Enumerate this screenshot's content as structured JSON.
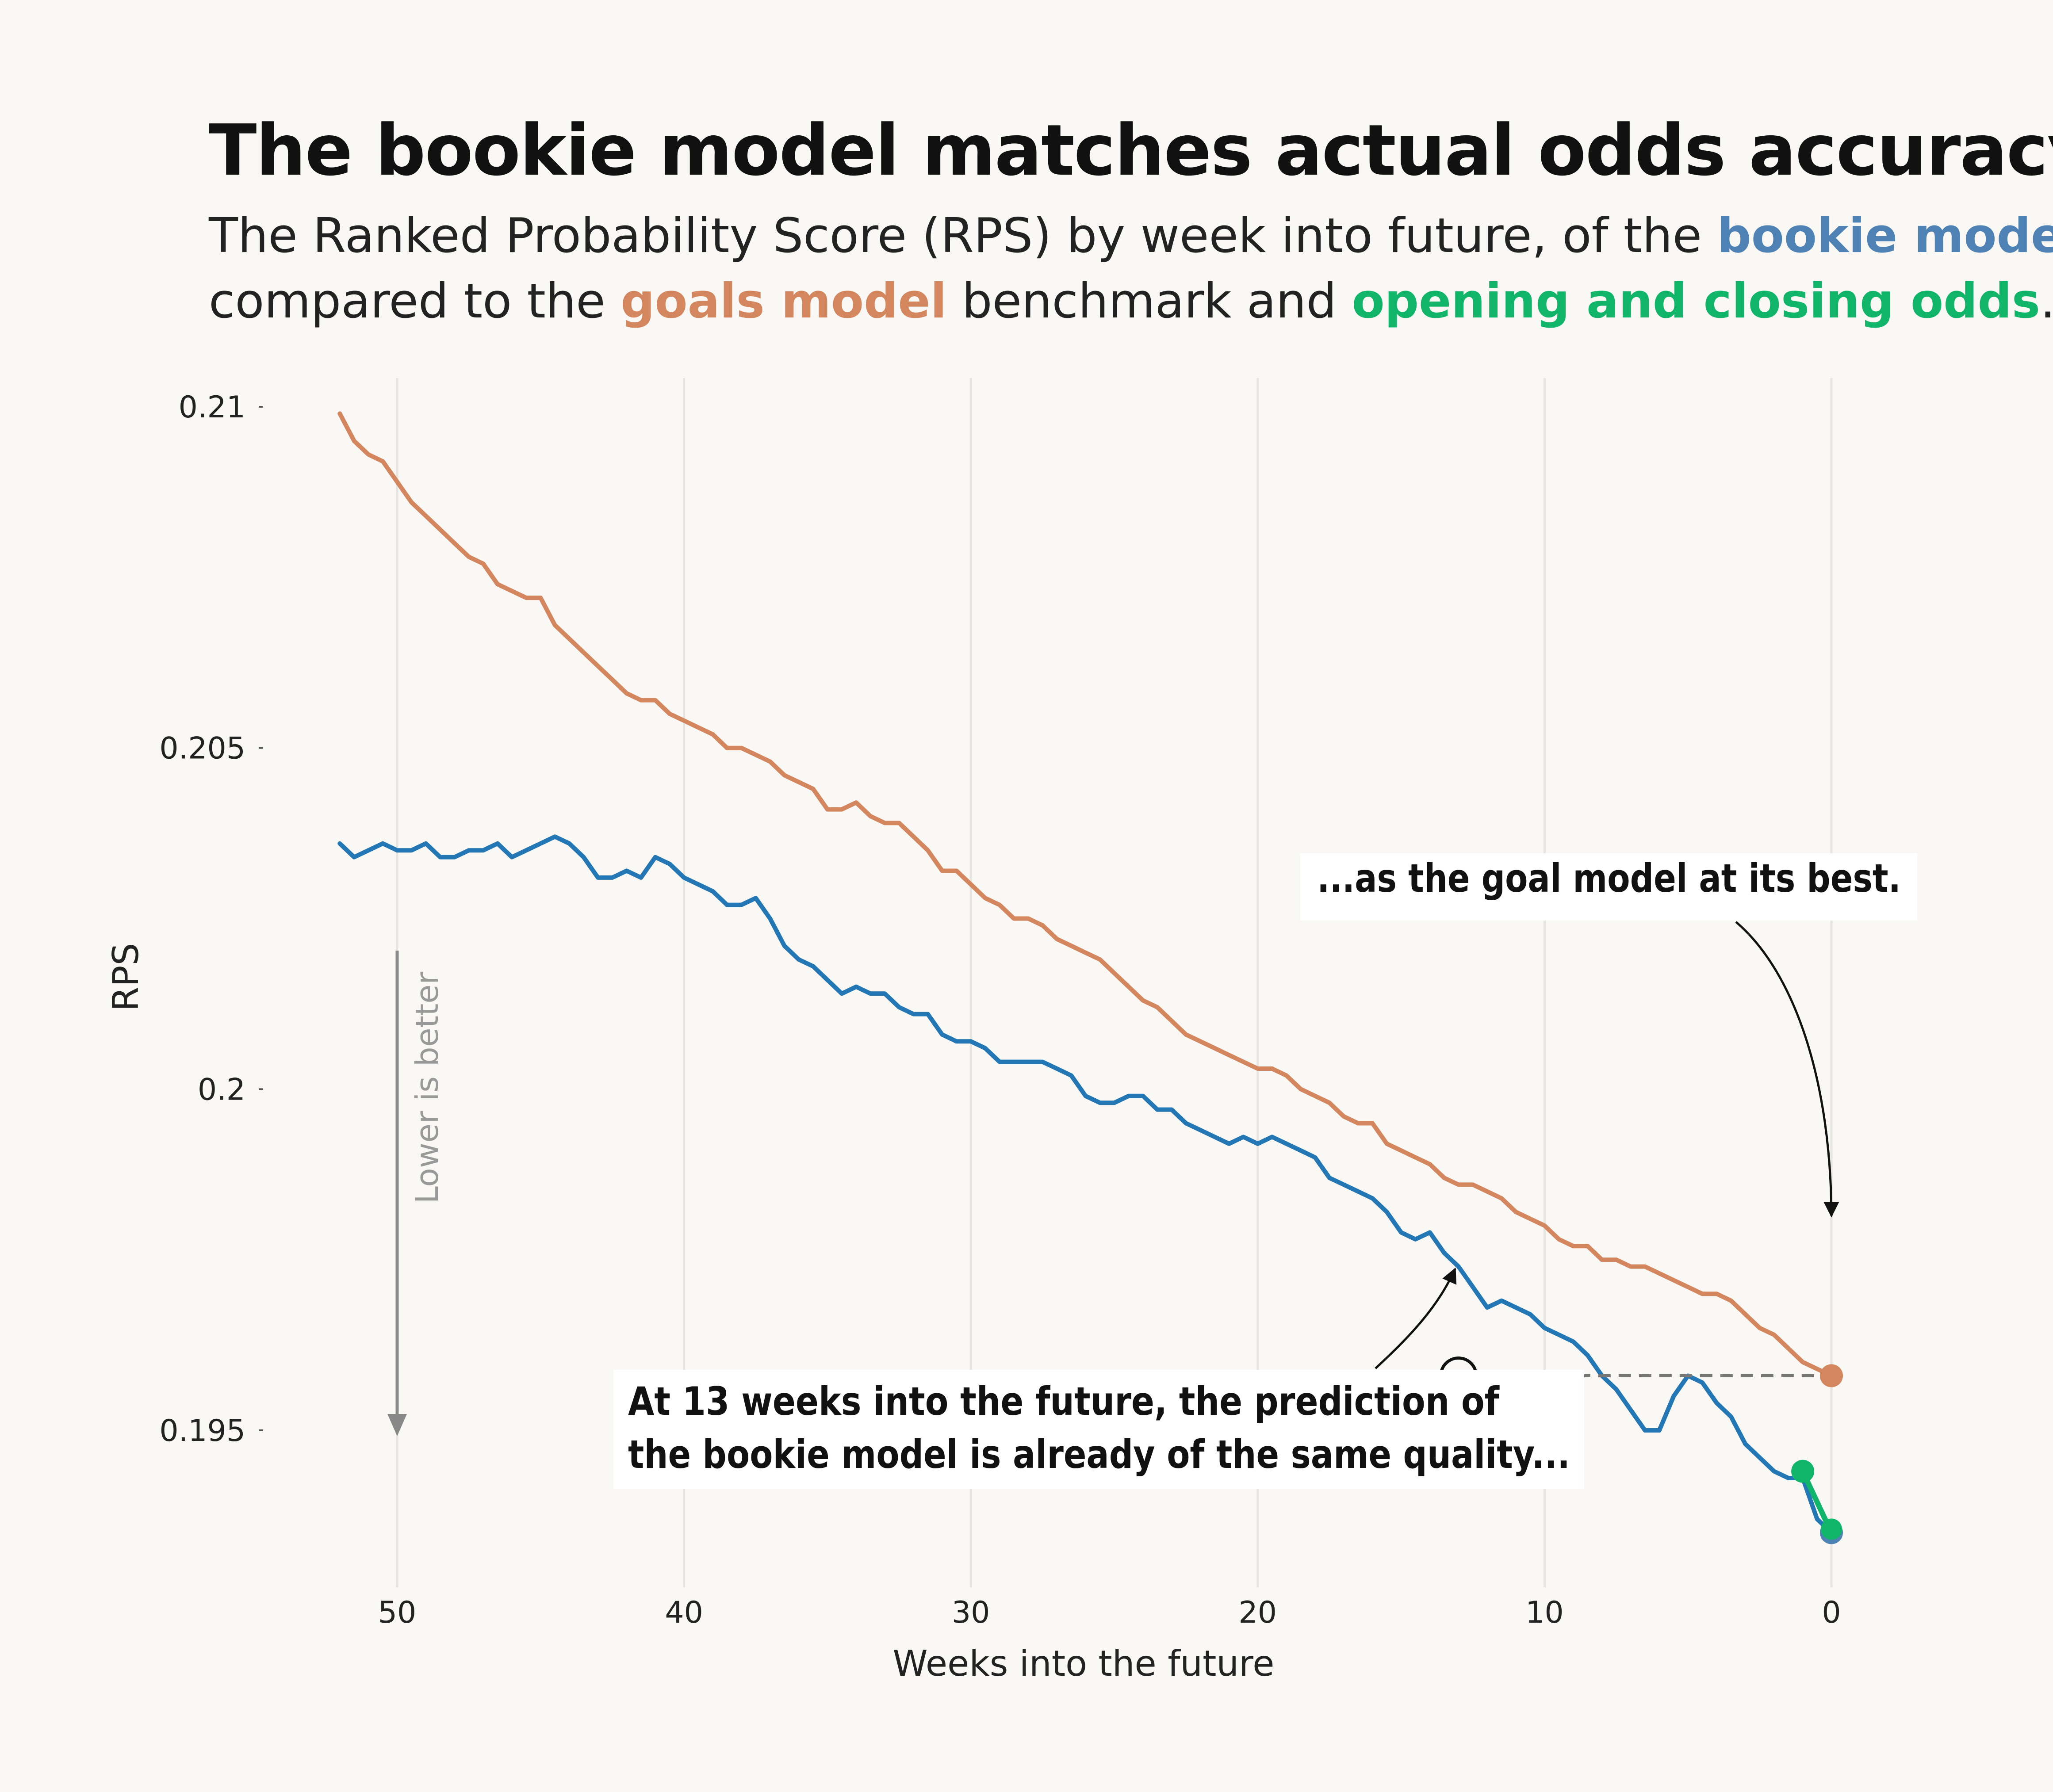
{
  "title": "The bookie model matches actual odds accuracy.",
  "subtitle": {
    "part1": "The Ranked Probability Score (RPS) by week into future, of the ",
    "bookie": "bookie model",
    "part2": "compared to the ",
    "goals": "goals model",
    "part3": " benchmark and ",
    "odds": "opening and closing odds",
    "part4": "."
  },
  "colors": {
    "background": "#faf8f4",
    "bookie": "#2277b4",
    "bookie_dot": "#4f82b4",
    "goals": "#d4875e",
    "odds": "#10b56a",
    "grid": "#e7e5e0"
  },
  "chart_data": {
    "type": "line",
    "xlabel": "Weeks into the future",
    "ylabel": "RPS",
    "xlim": [
      52,
      0
    ],
    "ylim": [
      0.1935,
      0.2105
    ],
    "x_ticks": [
      50,
      40,
      30,
      20,
      10,
      0
    ],
    "x_tick_labels": [
      "50",
      "40",
      "30",
      "20",
      "10",
      "0"
    ],
    "y_ticks": [
      0.21,
      0.205,
      0.2,
      0.195
    ],
    "y_tick_labels": [
      "0.21",
      "0.205",
      "0.2",
      "0.195"
    ],
    "grid": "vertical",
    "series": [
      {
        "name": "goals model",
        "x": [
          52,
          51.5,
          51,
          50.5,
          50,
          49.5,
          49,
          48.5,
          48,
          47.5,
          47,
          46.5,
          46,
          45.5,
          45,
          44.5,
          44,
          43.5,
          43,
          42.5,
          42,
          41.5,
          41,
          40.5,
          40,
          39.5,
          39,
          38.5,
          38,
          37.5,
          37,
          36.5,
          36,
          35.5,
          35,
          34.5,
          34,
          33.5,
          33,
          32.5,
          32,
          31.5,
          31,
          30.5,
          30,
          29.5,
          29,
          28.5,
          28,
          27.5,
          27,
          26.5,
          26,
          25.5,
          25,
          24.5,
          24,
          23.5,
          23,
          22.5,
          22,
          21.5,
          21,
          20.5,
          20,
          19.5,
          19,
          18.5,
          18,
          17.5,
          17,
          16.5,
          16,
          15.5,
          15,
          14.5,
          14,
          13.5,
          13,
          12.5,
          12,
          11.5,
          11,
          10.5,
          10,
          9.5,
          9,
          8.5,
          8,
          7.5,
          7,
          6.5,
          6,
          5.5,
          5,
          4.5,
          4,
          3.5,
          3,
          2.5,
          2,
          1.5,
          1,
          0.5,
          0
        ],
        "values": [
          0.2099,
          0.2095,
          0.2093,
          0.2092,
          0.2089,
          0.2086,
          0.2084,
          0.2082,
          0.208,
          0.2078,
          0.2077,
          0.2074,
          0.2073,
          0.2072,
          0.2072,
          0.2068,
          0.2066,
          0.2064,
          0.2062,
          0.206,
          0.2058,
          0.2057,
          0.2057,
          0.2055,
          0.2054,
          0.2053,
          0.2052,
          0.205,
          0.205,
          0.2049,
          0.2048,
          0.2046,
          0.2045,
          0.2044,
          0.2041,
          0.2041,
          0.2042,
          0.204,
          0.2039,
          0.2039,
          0.2037,
          0.2035,
          0.2032,
          0.2032,
          0.203,
          0.2028,
          0.2027,
          0.2025,
          0.2025,
          0.2024,
          0.2022,
          0.2021,
          0.202,
          0.2019,
          0.2017,
          0.2015,
          0.2013,
          0.2012,
          0.201,
          0.2008,
          0.2007,
          0.2006,
          0.2005,
          0.2004,
          0.2003,
          0.2003,
          0.2002,
          0.2,
          0.1999,
          0.1998,
          0.1996,
          0.1995,
          0.1995,
          0.1992,
          0.1991,
          0.199,
          0.1989,
          0.1987,
          0.1986,
          0.1986,
          0.1985,
          0.1984,
          0.1982,
          0.1981,
          0.198,
          0.1978,
          0.1977,
          0.1977,
          0.1975,
          0.1975,
          0.1974,
          0.1974,
          0.1973,
          0.1972,
          0.1971,
          0.197,
          0.197,
          0.1969,
          0.1967,
          0.1965,
          0.1964,
          0.1962,
          0.196,
          0.1959,
          0.1958
        ]
      },
      {
        "name": "bookie model",
        "x": [
          52,
          51.5,
          51,
          50.5,
          50,
          49.5,
          49,
          48.5,
          48,
          47.5,
          47,
          46.5,
          46,
          45.5,
          45,
          44.5,
          44,
          43.5,
          43,
          42.5,
          42,
          41.5,
          41,
          40.5,
          40,
          39.5,
          39,
          38.5,
          38,
          37.5,
          37,
          36.5,
          36,
          35.5,
          35,
          34.5,
          34,
          33.5,
          33,
          32.5,
          32,
          31.5,
          31,
          30.5,
          30,
          29.5,
          29,
          28.5,
          28,
          27.5,
          27,
          26.5,
          26,
          25.5,
          25,
          24.5,
          24,
          23.5,
          23,
          22.5,
          22,
          21.5,
          21,
          20.5,
          20,
          19.5,
          19,
          18.5,
          18,
          17.5,
          17,
          16.5,
          16,
          15.5,
          15,
          14.5,
          14,
          13.5,
          13,
          12.5,
          12,
          11.5,
          11,
          10.5,
          10,
          9.5,
          9,
          8.5,
          8,
          7.5,
          7,
          6.5,
          6,
          5.5,
          5,
          4.5,
          4,
          3.5,
          3,
          2.5,
          2,
          1.5,
          1,
          0.5,
          0
        ],
        "values": [
          0.2036,
          0.2034,
          0.2035,
          0.2036,
          0.2035,
          0.2035,
          0.2036,
          0.2034,
          0.2034,
          0.2035,
          0.2035,
          0.2036,
          0.2034,
          0.2035,
          0.2036,
          0.2037,
          0.2036,
          0.2034,
          0.2031,
          0.2031,
          0.2032,
          0.2031,
          0.2034,
          0.2033,
          0.2031,
          0.203,
          0.2029,
          0.2027,
          0.2027,
          0.2028,
          0.2025,
          0.2021,
          0.2019,
          0.2018,
          0.2016,
          0.2014,
          0.2015,
          0.2014,
          0.2014,
          0.2012,
          0.2011,
          0.2011,
          0.2008,
          0.2007,
          0.2007,
          0.2006,
          0.2004,
          0.2004,
          0.2004,
          0.2004,
          0.2003,
          0.2002,
          0.1999,
          0.1998,
          0.1998,
          0.1999,
          0.1999,
          0.1997,
          0.1997,
          0.1995,
          0.1994,
          0.1993,
          0.1992,
          0.1993,
          0.1992,
          0.1993,
          0.1992,
          0.1991,
          0.199,
          0.1987,
          0.1986,
          0.1985,
          0.1984,
          0.1982,
          0.1979,
          0.1978,
          0.1979,
          0.1976,
          0.1974,
          0.1971,
          0.1968,
          0.1969,
          0.1968,
          0.1967,
          0.1965,
          0.1964,
          0.1963,
          0.1961,
          0.1958,
          0.1956,
          0.1953,
          0.195,
          0.195,
          0.1955,
          0.1958,
          0.1957,
          0.1954,
          0.1952,
          0.1948,
          0.1946,
          0.1944,
          0.1943,
          0.1943,
          0.1937,
          0.1935
        ]
      },
      {
        "name": "opening and closing odds",
        "x": [
          1,
          0
        ],
        "values": [
          0.1944,
          0.1935
        ]
      }
    ],
    "annotations": [
      "...as the goal model at its best.",
      "At 13 weeks into the future, the prediction of",
      "the bookie model is already of the same quality...",
      "Lower is better"
    ]
  }
}
